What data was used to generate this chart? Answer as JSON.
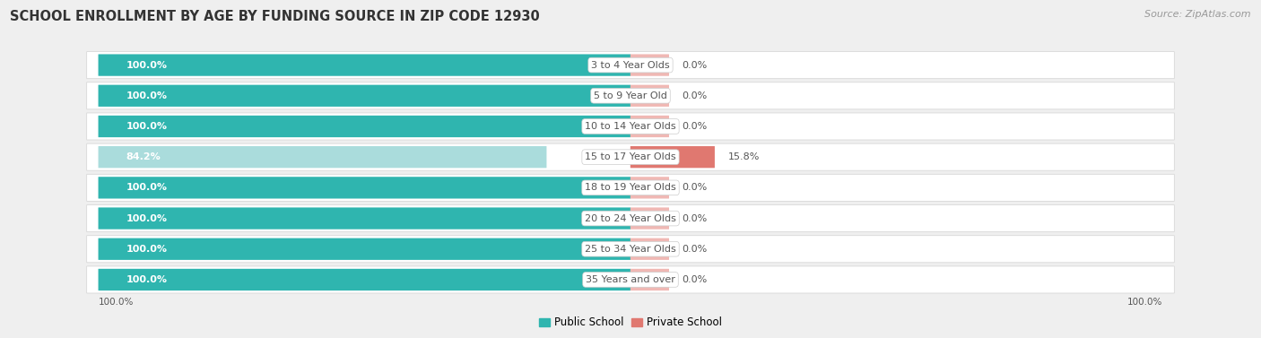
{
  "title": "SCHOOL ENROLLMENT BY AGE BY FUNDING SOURCE IN ZIP CODE 12930",
  "source": "Source: ZipAtlas.com",
  "categories": [
    "3 to 4 Year Olds",
    "5 to 9 Year Old",
    "10 to 14 Year Olds",
    "15 to 17 Year Olds",
    "18 to 19 Year Olds",
    "20 to 24 Year Olds",
    "25 to 34 Year Olds",
    "35 Years and over"
  ],
  "public_pct": [
    100.0,
    100.0,
    100.0,
    84.2,
    100.0,
    100.0,
    100.0,
    100.0
  ],
  "private_pct": [
    0.0,
    0.0,
    0.0,
    15.8,
    0.0,
    0.0,
    0.0,
    0.0
  ],
  "public_color": "#2fb5af",
  "public_color_light": "#aadcdc",
  "private_color": "#e07870",
  "private_color_light": "#f0b8b4",
  "bg_color": "#efefef",
  "row_bg_color": "#ffffff",
  "row_border_color": "#d8d8d8",
  "label_white": "#ffffff",
  "label_dark": "#555555",
  "legend_public": "Public School",
  "legend_private": "Private School",
  "title_fontsize": 10.5,
  "label_fontsize": 8.0,
  "source_fontsize": 8.0,
  "bottom_left_label": "100.0%",
  "bottom_right_label": "100.0%"
}
